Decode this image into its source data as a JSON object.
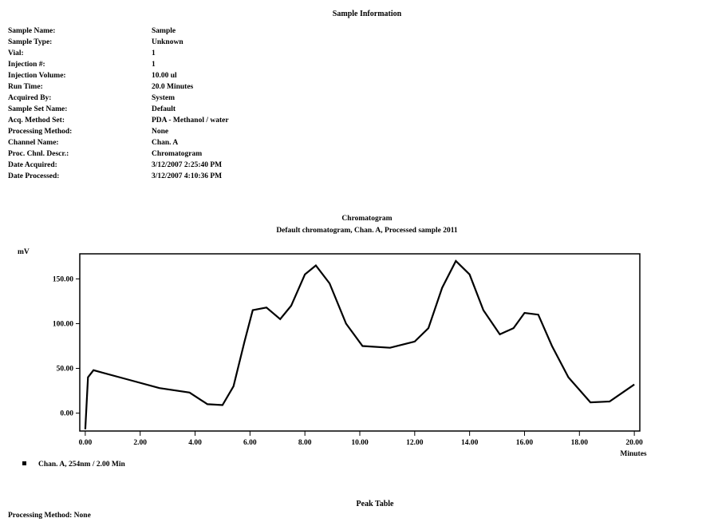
{
  "header": {
    "title": "Sample Information"
  },
  "sample_info": [
    {
      "label": "Sample Name:",
      "value": "Sample"
    },
    {
      "label": "Sample Type:",
      "value": "Unknown"
    },
    {
      "label": "Vial:",
      "value": "1"
    },
    {
      "label": "Injection #:",
      "value": "1"
    },
    {
      "label": "Injection Volume:",
      "value": "10.00 ul"
    },
    {
      "label": "Run Time:",
      "value": "20.0 Minutes"
    },
    {
      "label": "Acquired By:",
      "value": "System"
    },
    {
      "label": "Sample Set Name:",
      "value": "Default"
    },
    {
      "label": "Acq. Method Set:",
      "value": "PDA - Methanol / water"
    },
    {
      "label": "Processing Method:",
      "value": "None"
    },
    {
      "label": "Channel Name:",
      "value": "Chan. A"
    },
    {
      "label": "Proc. Chnl. Descr.:",
      "value": "Chromatogram"
    },
    {
      "label": "Date Acquired:",
      "value": "3/12/2007 2:25:40 PM"
    },
    {
      "label": "Date Processed:",
      "value": "3/12/2007 4:10:36 PM"
    }
  ],
  "chart_data": {
    "type": "line",
    "title": "Chromatogram",
    "subtitle": "Default chromatogram, Chan. A, Processed sample 2011",
    "y_label": "mV",
    "x_label": "Minutes",
    "x": [
      0,
      0.1,
      0.3,
      1.5,
      2.7,
      3.8,
      4.45,
      5.0,
      5.4,
      5.8,
      6.1,
      6.6,
      7.1,
      7.5,
      8.0,
      8.4,
      8.9,
      9.5,
      10.1,
      11.1,
      12.0,
      12.5,
      13.0,
      13.5,
      14.0,
      14.5,
      15.1,
      15.6,
      16.0,
      16.5,
      17.0,
      17.6,
      18.4,
      19.1,
      20.0
    ],
    "series": [
      {
        "name": "Chan. A, 254nm / 2.00 Min",
        "color": "#000000",
        "values": [
          -18,
          40,
          48,
          38,
          28,
          23,
          10,
          9,
          30,
          80,
          115,
          118,
          105,
          120,
          155,
          165,
          145,
          100,
          75,
          73,
          80,
          95,
          140,
          170,
          155,
          115,
          88,
          95,
          112,
          110,
          75,
          40,
          12,
          13,
          32
        ]
      }
    ],
    "xlim": [
      -0.2,
      20.2
    ],
    "ylim": [
      -20,
      178
    ],
    "xticks": [
      {
        "value": 0,
        "label": "0.00"
      },
      {
        "value": 2,
        "label": "2.00"
      },
      {
        "value": 4,
        "label": "4.00"
      },
      {
        "value": 6,
        "label": "6.00"
      },
      {
        "value": 8,
        "label": "8.00"
      },
      {
        "value": 10,
        "label": "10.00"
      },
      {
        "value": 12,
        "label": "12.00"
      },
      {
        "value": 14,
        "label": "14.00"
      },
      {
        "value": 16,
        "label": "16.00"
      },
      {
        "value": 18,
        "label": "18.00"
      },
      {
        "value": 20,
        "label": "20.00"
      }
    ],
    "yticks": [
      {
        "value": 0,
        "label": "0.00"
      },
      {
        "value": 50,
        "label": "50.00"
      },
      {
        "value": 100,
        "label": "100.00"
      },
      {
        "value": 150,
        "label": "150.00"
      }
    ]
  },
  "footer": {
    "table_title": "Peak Table",
    "note": "Processing Method: None"
  }
}
